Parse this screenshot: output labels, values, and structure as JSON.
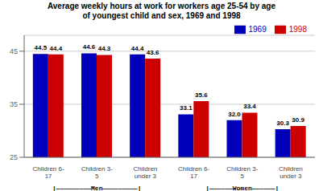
{
  "chart_data": {
    "type": "bar",
    "title": "Average weekly hours at work for workers age 25-54 by age\nof youngest child and sex, 1969 and 1998",
    "categories": [
      "Children 6-\n17",
      "Children 3-\n5",
      "Children\nunder 3",
      "Children 6-\n17",
      "Children 3-\n5",
      "Children\nunder 3"
    ],
    "series": [
      {
        "name": "1969",
        "color": "#0000BB",
        "values": [
          44.5,
          44.6,
          44.4,
          33.1,
          32.0,
          30.3
        ],
        "value_labels": [
          "44.5",
          "44.6",
          "44.4",
          "33.1",
          "32.0",
          "30.3"
        ]
      },
      {
        "name": "1998",
        "color": "#CC0000",
        "values": [
          44.4,
          44.3,
          43.6,
          35.6,
          33.4,
          30.9
        ]
      }
    ],
    "ylim": [
      25,
      48
    ],
    "yticks": [
      25,
      35,
      45
    ],
    "grid": true,
    "legend": "upper right",
    "data_labels": true,
    "annotations": [
      "|—————————Men—————————|",
      "|——————Women——————|"
    ]
  }
}
